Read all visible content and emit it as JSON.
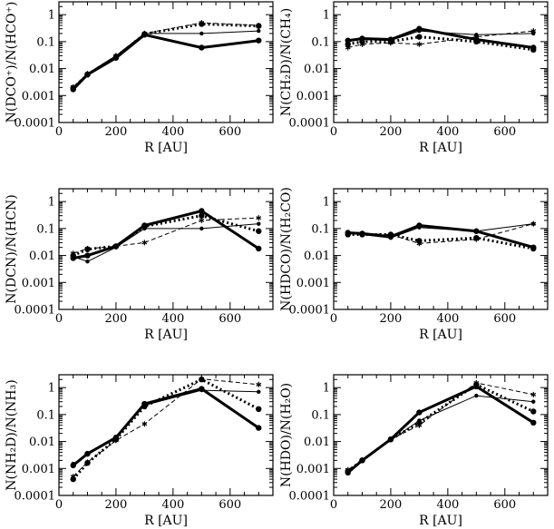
{
  "chart_data": [
    {
      "type": "line",
      "xlabel": "R [AU]",
      "ylabel": "N(DCO⁺)/N(HCO⁺)",
      "xlim": [
        0,
        750
      ],
      "ylim": [
        0.0001,
        3
      ],
      "yscale": "log",
      "x_ticks": [
        "0",
        "200",
        "400",
        "600"
      ],
      "y_ticks": [
        "0.0001",
        "0.001",
        "0.01",
        "0.1",
        "1"
      ],
      "x": [
        50,
        100,
        200,
        300,
        500,
        700
      ],
      "series": [
        {
          "style": "thick-solid",
          "values": [
            0.0017,
            0.006,
            0.025,
            0.18,
            0.06,
            0.11
          ]
        },
        {
          "style": "thin-solid",
          "values": [
            0.002,
            0.0065,
            0.03,
            0.2,
            0.2,
            0.25
          ]
        },
        {
          "style": "thick-dotted",
          "values": [
            0.0019,
            0.006,
            0.027,
            0.19,
            0.45,
            0.38
          ]
        },
        {
          "style": "thin-dashed",
          "values": [
            0.0021,
            0.0065,
            0.03,
            0.2,
            0.5,
            0.4
          ]
        }
      ]
    },
    {
      "type": "line",
      "xlabel": "R [AU]",
      "ylabel": "N(CH₂D)/N(CH₄)",
      "xlim": [
        0,
        750
      ],
      "ylim": [
        0.0001,
        3
      ],
      "yscale": "log",
      "x_ticks": [
        "0",
        "200",
        "400",
        "600"
      ],
      "y_ticks": [
        "0.0001",
        "0.001",
        "0.01",
        "0.1",
        "1"
      ],
      "x": [
        50,
        100,
        200,
        300,
        500,
        700
      ],
      "series": [
        {
          "style": "thick-solid",
          "values": [
            0.11,
            0.13,
            0.12,
            0.3,
            0.12,
            0.06
          ]
        },
        {
          "style": "thin-solid",
          "values": [
            0.1,
            0.12,
            0.11,
            0.25,
            0.18,
            0.2
          ]
        },
        {
          "style": "thick-dotted",
          "values": [
            0.08,
            0.1,
            0.1,
            0.15,
            0.1,
            0.05
          ]
        },
        {
          "style": "thin-dashed",
          "values": [
            0.06,
            0.08,
            0.09,
            0.08,
            0.15,
            0.25
          ]
        }
      ]
    },
    {
      "type": "line",
      "xlabel": "R [AU]",
      "ylabel": "N(DCN)/N(HCN)",
      "xlim": [
        0,
        750
      ],
      "ylim": [
        0.0001,
        3
      ],
      "yscale": "log",
      "x_ticks": [
        "0",
        "200",
        "400",
        "600"
      ],
      "y_ticks": [
        "0.0001",
        "0.001",
        "0.01",
        "0.1",
        "1"
      ],
      "x": [
        50,
        100,
        200,
        300,
        500,
        700
      ],
      "series": [
        {
          "style": "thick-solid",
          "values": [
            0.008,
            0.01,
            0.022,
            0.13,
            0.45,
            0.018
          ]
        },
        {
          "style": "thin-solid",
          "values": [
            0.009,
            0.006,
            0.02,
            0.1,
            0.1,
            0.15
          ]
        },
        {
          "style": "thick-dotted",
          "values": [
            0.01,
            0.017,
            0.022,
            0.12,
            0.3,
            0.08
          ]
        },
        {
          "style": "thin-dashed",
          "values": [
            0.012,
            0.018,
            0.022,
            0.03,
            0.2,
            0.25
          ]
        }
      ]
    },
    {
      "type": "line",
      "xlabel": "R [AU]",
      "ylabel": "N(HDCO)/N(H₂CO)",
      "xlim": [
        0,
        750
      ],
      "ylim": [
        0.0001,
        3
      ],
      "yscale": "log",
      "x_ticks": [
        "0",
        "200",
        "400",
        "600"
      ],
      "y_ticks": [
        "0.0001",
        "0.001",
        "0.01",
        "0.1",
        "1"
      ],
      "x": [
        50,
        100,
        200,
        300,
        500,
        700
      ],
      "series": [
        {
          "style": "thick-solid",
          "values": [
            0.07,
            0.065,
            0.05,
            0.13,
            0.08,
            0.02
          ]
        },
        {
          "style": "thin-solid",
          "values": [
            0.065,
            0.06,
            0.045,
            0.11,
            0.08,
            0.15
          ]
        },
        {
          "style": "thick-dotted",
          "values": [
            0.06,
            0.06,
            0.06,
            0.035,
            0.045,
            0.018
          ]
        },
        {
          "style": "thin-dashed",
          "values": [
            0.065,
            0.065,
            0.06,
            0.028,
            0.04,
            0.15
          ]
        }
      ]
    },
    {
      "type": "line",
      "xlabel": "R [AU]",
      "ylabel": "N(NH₂D)/N(NH₃)",
      "xlim": [
        0,
        750
      ],
      "ylim": [
        0.0001,
        3
      ],
      "yscale": "log",
      "x_ticks": [
        "0",
        "200",
        "400",
        "600"
      ],
      "y_ticks": [
        "0.0001",
        "0.001",
        "0.01",
        "0.1",
        "1"
      ],
      "x": [
        50,
        100,
        200,
        300,
        500,
        700
      ],
      "series": [
        {
          "style": "thick-solid",
          "values": [
            0.0013,
            0.0035,
            0.014,
            0.25,
            0.9,
            0.032
          ]
        },
        {
          "style": "thin-solid",
          "values": [
            0.0015,
            0.0033,
            0.013,
            0.22,
            0.8,
            0.7
          ]
        },
        {
          "style": "thick-dotted",
          "values": [
            0.0004,
            0.0016,
            0.012,
            0.2,
            2.0,
            0.16
          ]
        },
        {
          "style": "thin-dashed",
          "values": [
            0.0005,
            0.0017,
            0.011,
            0.045,
            2.1,
            1.3
          ]
        }
      ]
    },
    {
      "type": "line",
      "xlabel": "R [AU]",
      "ylabel": "N(HDO)/N(H₂O)",
      "xlim": [
        0,
        750
      ],
      "ylim": [
        0.0001,
        3
      ],
      "yscale": "log",
      "x_ticks": [
        "0",
        "200",
        "400",
        "600"
      ],
      "y_ticks": [
        "0.0001",
        "0.001",
        "0.01",
        "0.1",
        "1"
      ],
      "x": [
        50,
        100,
        200,
        300,
        500,
        700
      ],
      "series": [
        {
          "style": "thick-solid",
          "values": [
            0.0007,
            0.002,
            0.012,
            0.12,
            1.1,
            0.05
          ]
        },
        {
          "style": "thin-solid",
          "values": [
            0.0008,
            0.002,
            0.011,
            0.06,
            0.5,
            0.3
          ]
        },
        {
          "style": "thick-dotted",
          "values": [
            0.0008,
            0.002,
            0.012,
            0.05,
            1.3,
            0.13
          ]
        },
        {
          "style": "thin-dashed",
          "values": [
            0.0009,
            0.002,
            0.012,
            0.04,
            1.5,
            0.55
          ]
        }
      ]
    }
  ]
}
